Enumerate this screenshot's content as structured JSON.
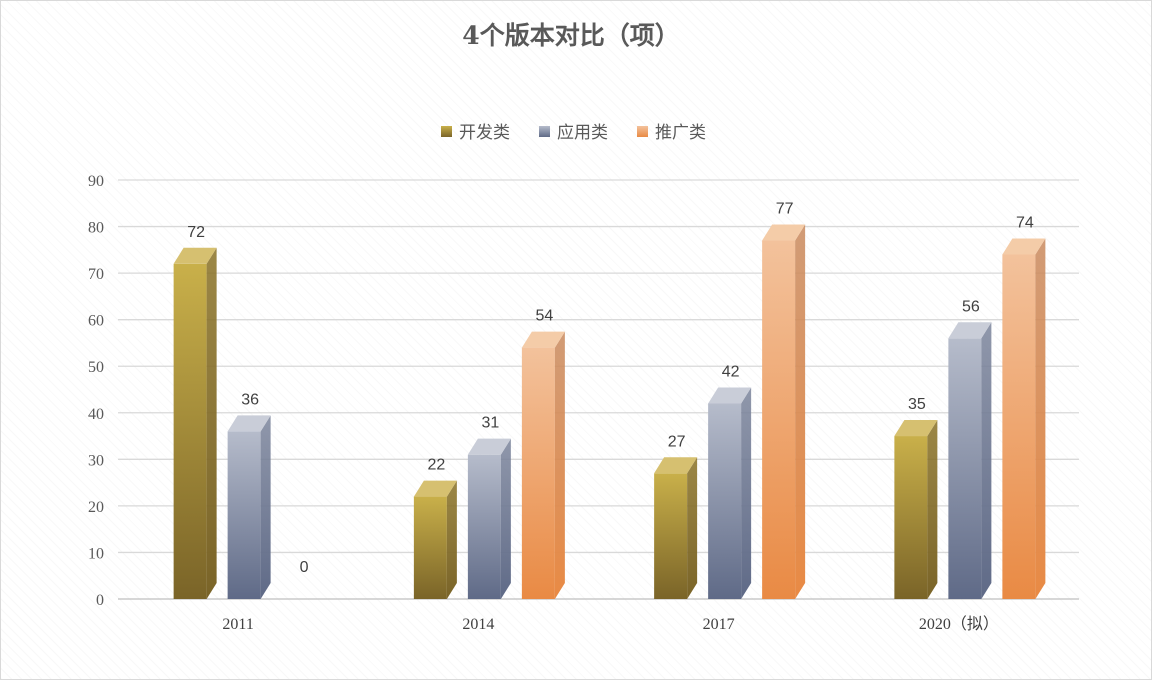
{
  "chart_data": {
    "type": "bar",
    "title": "4个版本对比（项）",
    "categories": [
      "2011",
      "2014",
      "2017",
      "2020（拟）"
    ],
    "series": [
      {
        "name": "开发类",
        "values": [
          72,
          22,
          27,
          35
        ]
      },
      {
        "name": "应用类",
        "values": [
          36,
          31,
          42,
          56
        ]
      },
      {
        "name": "推广类",
        "values": [
          0,
          54,
          77,
          74
        ]
      }
    ],
    "ylim": [
      0,
      90
    ],
    "yticks": [
      0,
      10,
      20,
      30,
      40,
      50,
      60,
      70,
      80,
      90
    ],
    "grid": true,
    "legend_position": "top",
    "style": "3d-column"
  },
  "colors": {
    "开发类": {
      "top": "#c9b04a",
      "bottom": "#7a6428",
      "side": "#8a7226",
      "cap": "#d6c070"
    },
    "应用类": {
      "top": "#b6bccb",
      "bottom": "#5f6a87",
      "side": "#7c859c",
      "cap": "#c9cdd8"
    },
    "推广类": {
      "top": "#f3c29c",
      "bottom": "#e98a44",
      "side": "#c98a5e",
      "cap": "#f4cca8"
    }
  }
}
